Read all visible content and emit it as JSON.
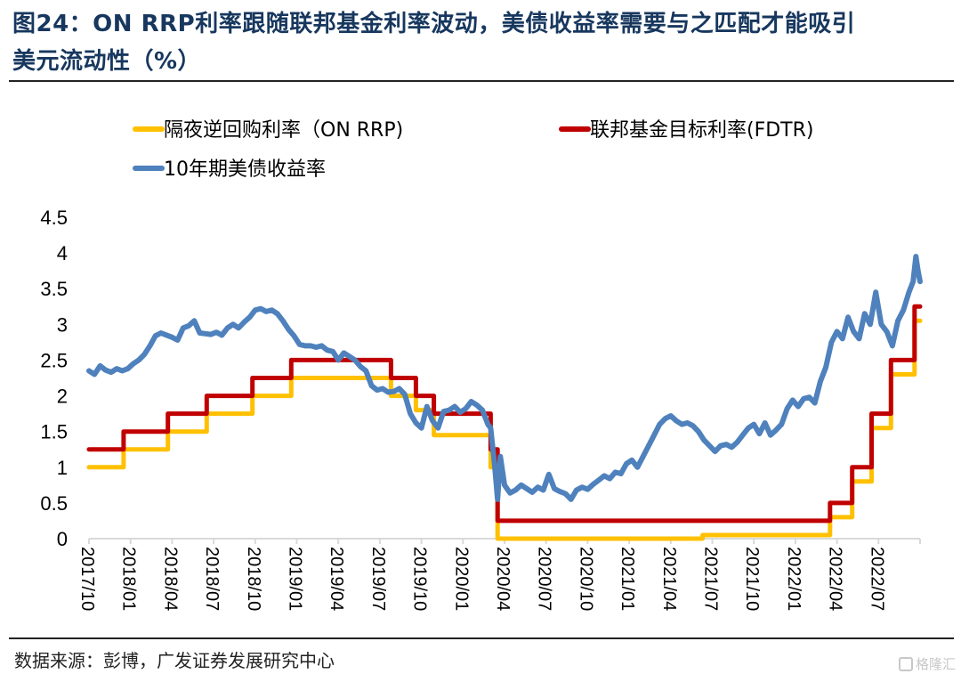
{
  "header": {
    "title_line1": "图24：ON RRP利率跟随联邦基金利率波动，美债收益率需要与之匹配才能吸引",
    "title_line2": "美元流动性（%）"
  },
  "footer": {
    "source": "数据来源：彭博，广发证券发展研究中心",
    "watermark": "格隆汇"
  },
  "chart_data": {
    "type": "line",
    "title": "ON RRP利率跟随联邦基金利率波动，美债收益率需要与之匹配才能吸引美元流动性（%）",
    "xlabel": "",
    "ylabel": "%",
    "x_unit": "months since 2017/10",
    "xlim": [
      0,
      60
    ],
    "ylim": [
      0,
      4.5
    ],
    "yticks": [
      "0",
      "0.5",
      "1",
      "1.5",
      "2",
      "2.5",
      "3",
      "3.5",
      "4",
      "4.5"
    ],
    "xticks": [
      "2017/10",
      "2018/01",
      "2018/04",
      "2018/07",
      "2018/10",
      "2019/01",
      "2019/04",
      "2019/07",
      "2019/10",
      "2020/01",
      "2020/04",
      "2020/07",
      "2020/10",
      "2021/01",
      "2021/04",
      "2021/07",
      "2021/10",
      "2022/01",
      "2022/04",
      "2022/07"
    ],
    "legend": [
      "隔夜逆回购利率（ON RRP)",
      "联邦基金目标利率(FDTR)",
      "10年期美债收益率"
    ],
    "legend_position": "top",
    "grid": false,
    "series": [
      {
        "name": "隔夜逆回购利率（ON RRP)",
        "color": "#ffc000",
        "step": true,
        "points": [
          [
            0,
            1.0
          ],
          [
            2.5,
            1.0
          ],
          [
            2.5,
            1.25
          ],
          [
            5.7,
            1.25
          ],
          [
            5.7,
            1.5
          ],
          [
            8.5,
            1.5
          ],
          [
            8.5,
            1.75
          ],
          [
            11.8,
            1.75
          ],
          [
            11.8,
            2.0
          ],
          [
            14.6,
            2.0
          ],
          [
            14.6,
            2.25
          ],
          [
            21.8,
            2.25
          ],
          [
            21.8,
            2.0
          ],
          [
            23.6,
            2.0
          ],
          [
            23.6,
            1.8
          ],
          [
            24.9,
            1.8
          ],
          [
            24.9,
            1.45
          ],
          [
            29.0,
            1.45
          ],
          [
            29.0,
            1.0
          ],
          [
            29.5,
            1.0
          ],
          [
            29.5,
            0.0
          ],
          [
            44.3,
            0.0
          ],
          [
            44.3,
            0.05
          ],
          [
            53.5,
            0.05
          ],
          [
            53.5,
            0.3
          ],
          [
            55.1,
            0.3
          ],
          [
            55.1,
            0.8
          ],
          [
            56.5,
            0.8
          ],
          [
            56.5,
            1.55
          ],
          [
            57.9,
            1.55
          ],
          [
            57.9,
            2.3
          ],
          [
            59.6,
            2.3
          ],
          [
            59.6,
            3.05
          ],
          [
            60,
            3.05
          ]
        ]
      },
      {
        "name": "联邦基金目标利率(FDTR)",
        "color": "#c00000",
        "step": true,
        "points": [
          [
            0,
            1.25
          ],
          [
            2.5,
            1.25
          ],
          [
            2.5,
            1.5
          ],
          [
            5.7,
            1.5
          ],
          [
            5.7,
            1.75
          ],
          [
            8.5,
            1.75
          ],
          [
            8.5,
            2.0
          ],
          [
            11.8,
            2.0
          ],
          [
            11.8,
            2.25
          ],
          [
            14.6,
            2.25
          ],
          [
            14.6,
            2.5
          ],
          [
            21.8,
            2.5
          ],
          [
            21.8,
            2.25
          ],
          [
            23.6,
            2.25
          ],
          [
            23.6,
            2.0
          ],
          [
            24.9,
            2.0
          ],
          [
            24.9,
            1.75
          ],
          [
            29.0,
            1.75
          ],
          [
            29.0,
            1.25
          ],
          [
            29.5,
            1.25
          ],
          [
            29.5,
            0.25
          ],
          [
            53.5,
            0.25
          ],
          [
            53.5,
            0.5
          ],
          [
            55.1,
            0.5
          ],
          [
            55.1,
            1.0
          ],
          [
            56.5,
            1.0
          ],
          [
            56.5,
            1.75
          ],
          [
            57.9,
            1.75
          ],
          [
            57.9,
            2.5
          ],
          [
            59.6,
            2.5
          ],
          [
            59.6,
            3.25
          ],
          [
            60,
            3.25
          ]
        ]
      },
      {
        "name": "10年期美债收益率",
        "color": "#4f81bd",
        "step": false,
        "points": [
          [
            0,
            2.35
          ],
          [
            0.4,
            2.3
          ],
          [
            0.8,
            2.42
          ],
          [
            1.2,
            2.36
          ],
          [
            1.6,
            2.33
          ],
          [
            2.0,
            2.38
          ],
          [
            2.4,
            2.35
          ],
          [
            2.8,
            2.38
          ],
          [
            3.2,
            2.45
          ],
          [
            3.6,
            2.5
          ],
          [
            4.0,
            2.58
          ],
          [
            4.4,
            2.7
          ],
          [
            4.8,
            2.84
          ],
          [
            5.2,
            2.88
          ],
          [
            5.6,
            2.85
          ],
          [
            6.0,
            2.82
          ],
          [
            6.4,
            2.78
          ],
          [
            6.8,
            2.95
          ],
          [
            7.2,
            2.98
          ],
          [
            7.6,
            3.05
          ],
          [
            8.0,
            2.88
          ],
          [
            8.4,
            2.87
          ],
          [
            8.8,
            2.86
          ],
          [
            9.2,
            2.89
          ],
          [
            9.6,
            2.85
          ],
          [
            10.0,
            2.95
          ],
          [
            10.4,
            3.0
          ],
          [
            10.8,
            2.95
          ],
          [
            11.2,
            3.03
          ],
          [
            11.6,
            3.1
          ],
          [
            12.0,
            3.2
          ],
          [
            12.4,
            3.22
          ],
          [
            12.8,
            3.18
          ],
          [
            13.2,
            3.2
          ],
          [
            13.6,
            3.15
          ],
          [
            14.0,
            3.05
          ],
          [
            14.4,
            2.93
          ],
          [
            14.8,
            2.84
          ],
          [
            15.2,
            2.72
          ],
          [
            15.6,
            2.7
          ],
          [
            16.0,
            2.7
          ],
          [
            16.4,
            2.68
          ],
          [
            16.8,
            2.7
          ],
          [
            17.2,
            2.64
          ],
          [
            17.6,
            2.62
          ],
          [
            18.0,
            2.5
          ],
          [
            18.4,
            2.6
          ],
          [
            18.8,
            2.55
          ],
          [
            19.2,
            2.5
          ],
          [
            19.6,
            2.41
          ],
          [
            20.0,
            2.35
          ],
          [
            20.4,
            2.14
          ],
          [
            20.8,
            2.08
          ],
          [
            21.2,
            2.1
          ],
          [
            21.6,
            2.05
          ],
          [
            22.0,
            2.06
          ],
          [
            22.4,
            2.1
          ],
          [
            22.8,
            2.02
          ],
          [
            23.2,
            1.75
          ],
          [
            23.6,
            1.62
          ],
          [
            24.0,
            1.55
          ],
          [
            24.4,
            1.85
          ],
          [
            24.8,
            1.65
          ],
          [
            25.2,
            1.55
          ],
          [
            25.6,
            1.78
          ],
          [
            26.0,
            1.8
          ],
          [
            26.4,
            1.85
          ],
          [
            26.8,
            1.77
          ],
          [
            27.2,
            1.82
          ],
          [
            27.6,
            1.92
          ],
          [
            28.0,
            1.87
          ],
          [
            28.4,
            1.8
          ],
          [
            28.8,
            1.6
          ],
          [
            29.0,
            1.55
          ],
          [
            29.3,
            1.0
          ],
          [
            29.5,
            0.55
          ],
          [
            29.7,
            1.15
          ],
          [
            30.0,
            0.75
          ],
          [
            30.4,
            0.64
          ],
          [
            30.8,
            0.68
          ],
          [
            31.2,
            0.75
          ],
          [
            31.6,
            0.7
          ],
          [
            32.0,
            0.65
          ],
          [
            32.4,
            0.72
          ],
          [
            32.8,
            0.68
          ],
          [
            33.2,
            0.9
          ],
          [
            33.6,
            0.7
          ],
          [
            34.0,
            0.66
          ],
          [
            34.4,
            0.63
          ],
          [
            34.8,
            0.55
          ],
          [
            35.2,
            0.68
          ],
          [
            35.6,
            0.72
          ],
          [
            36.0,
            0.69
          ],
          [
            36.4,
            0.76
          ],
          [
            36.8,
            0.82
          ],
          [
            37.2,
            0.88
          ],
          [
            37.6,
            0.84
          ],
          [
            38.0,
            0.93
          ],
          [
            38.4,
            0.91
          ],
          [
            38.8,
            1.05
          ],
          [
            39.2,
            1.1
          ],
          [
            39.6,
            1.0
          ],
          [
            40.0,
            1.15
          ],
          [
            40.4,
            1.3
          ],
          [
            40.8,
            1.45
          ],
          [
            41.2,
            1.6
          ],
          [
            41.6,
            1.68
          ],
          [
            42.0,
            1.72
          ],
          [
            42.4,
            1.65
          ],
          [
            42.8,
            1.6
          ],
          [
            43.2,
            1.62
          ],
          [
            43.6,
            1.58
          ],
          [
            44.0,
            1.5
          ],
          [
            44.4,
            1.38
          ],
          [
            44.8,
            1.3
          ],
          [
            45.2,
            1.22
          ],
          [
            45.6,
            1.3
          ],
          [
            46.0,
            1.32
          ],
          [
            46.4,
            1.28
          ],
          [
            46.8,
            1.35
          ],
          [
            47.2,
            1.45
          ],
          [
            47.6,
            1.55
          ],
          [
            48.0,
            1.6
          ],
          [
            48.4,
            1.47
          ],
          [
            48.8,
            1.62
          ],
          [
            49.2,
            1.45
          ],
          [
            49.6,
            1.52
          ],
          [
            50.0,
            1.6
          ],
          [
            50.4,
            1.82
          ],
          [
            50.8,
            1.94
          ],
          [
            51.2,
            1.85
          ],
          [
            51.6,
            1.96
          ],
          [
            52.0,
            1.98
          ],
          [
            52.4,
            1.9
          ],
          [
            52.8,
            2.2
          ],
          [
            53.2,
            2.4
          ],
          [
            53.6,
            2.75
          ],
          [
            54.0,
            2.9
          ],
          [
            54.4,
            2.8
          ],
          [
            54.8,
            3.1
          ],
          [
            55.2,
            2.9
          ],
          [
            55.6,
            2.8
          ],
          [
            56.0,
            3.15
          ],
          [
            56.4,
            3.0
          ],
          [
            56.8,
            3.45
          ],
          [
            57.2,
            3.0
          ],
          [
            57.6,
            2.9
          ],
          [
            58.0,
            2.7
          ],
          [
            58.4,
            3.05
          ],
          [
            58.8,
            3.2
          ],
          [
            59.2,
            3.45
          ],
          [
            59.5,
            3.6
          ],
          [
            59.7,
            3.95
          ],
          [
            59.85,
            3.75
          ],
          [
            60.0,
            3.6
          ]
        ]
      }
    ]
  }
}
